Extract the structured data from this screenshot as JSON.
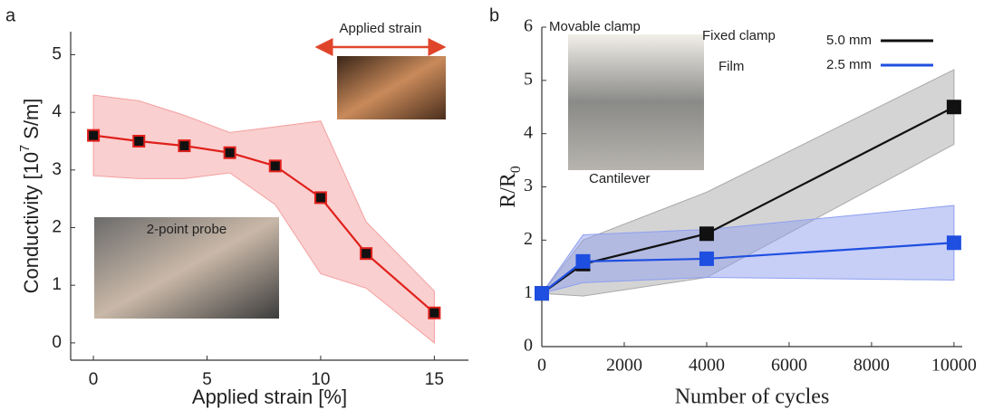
{
  "chart_data": [
    {
      "type": "line",
      "panel": "a",
      "xlabel": "Applied strain [%]",
      "ylabel": [
        "Conductivity [10",
        "7",
        " S/m]"
      ],
      "x": [
        0,
        2,
        4,
        6,
        8,
        10,
        12,
        15
      ],
      "series": [
        {
          "color": "#e0201b",
          "marker_fill": "#111111",
          "band_color": "#f4a0a0",
          "values": [
            3.6,
            3.5,
            3.42,
            3.3,
            3.07,
            2.52,
            1.55,
            0.52
          ],
          "upper": [
            4.3,
            4.2,
            3.95,
            3.65,
            3.75,
            3.85,
            2.1,
            0.9
          ],
          "lower": [
            2.9,
            2.85,
            2.85,
            2.95,
            2.4,
            1.2,
            0.95,
            0.0
          ]
        }
      ],
      "xlim": [
        -1,
        16.5
      ],
      "ylim": [
        -0.3,
        5.4
      ],
      "xticks": [
        0,
        5,
        10,
        15
      ],
      "yticks": [
        0,
        1,
        2,
        3,
        4,
        5
      ],
      "annotations": [
        "Applied strain",
        "2-point probe"
      ]
    },
    {
      "type": "line",
      "panel": "b",
      "xlabel": "Number of cycles",
      "ylabel": [
        "R/R",
        "0"
      ],
      "x": [
        0,
        1000,
        4000,
        10000
      ],
      "series": [
        {
          "name": "5.0 mm",
          "color": "#111111",
          "marker_fill": "#111111",
          "band_color": "#a9a9a9",
          "values": [
            1,
            1.55,
            2.12,
            4.5
          ],
          "upper": [
            1,
            2.0,
            2.9,
            5.2
          ],
          "lower": [
            1,
            0.95,
            1.3,
            3.8
          ]
        },
        {
          "name": "2.5 mm",
          "color": "#1f4fe0",
          "marker_fill": "#1f4fe0",
          "band_color": "#8f9ff0",
          "values": [
            1,
            1.6,
            1.65,
            1.95
          ],
          "upper": [
            1,
            2.1,
            2.2,
            2.65
          ],
          "lower": [
            1,
            1.2,
            1.3,
            1.25
          ]
        }
      ],
      "xlim": [
        0,
        10200
      ],
      "ylim": [
        0,
        6
      ],
      "xticks": [
        0,
        2000,
        4000,
        6000,
        8000,
        10000
      ],
      "yticks": [
        0,
        1,
        2,
        3,
        4,
        5,
        6
      ],
      "annotations": [
        "Movable clamp",
        "Fixed clamp",
        "Film",
        "Cantilever"
      ]
    }
  ]
}
